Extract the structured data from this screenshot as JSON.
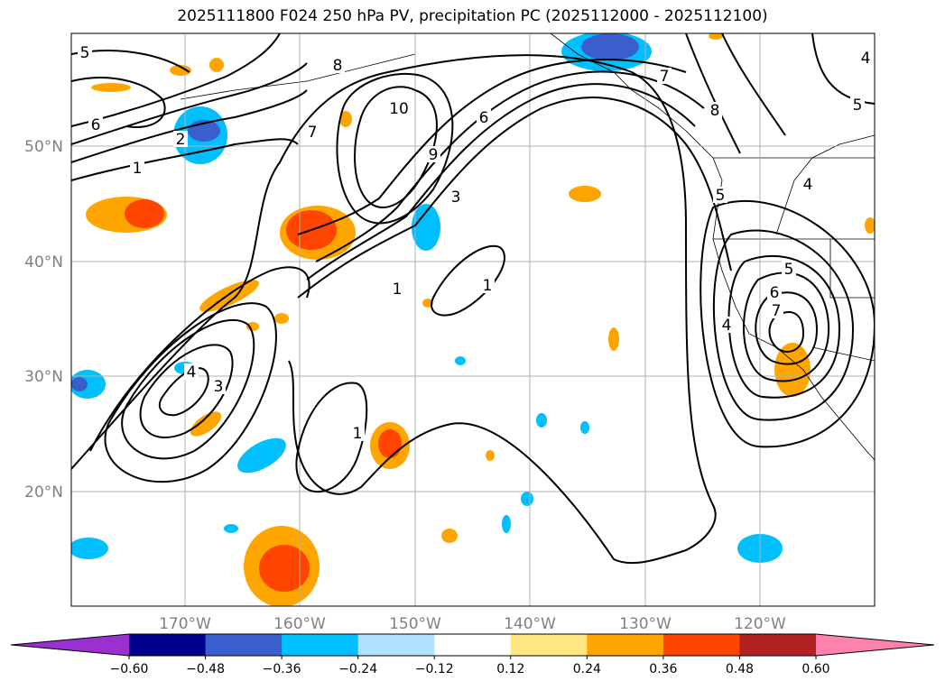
{
  "title": "2025111800 F024 250 hPa PV, precipitation PC (2025112000 - 2025112100)",
  "lat_labels": [
    "50°N",
    "40°N",
    "30°N",
    "20°N"
  ],
  "lon_labels": [
    "170°W",
    "160°W",
    "150°W",
    "140°W",
    "130°W",
    "120°W"
  ],
  "colorbar": {
    "ticks": [
      "−0.60",
      "−0.48",
      "−0.36",
      "−0.24",
      "−0.12",
      "0.12",
      "0.24",
      "0.36",
      "0.48",
      "0.60"
    ],
    "colors": [
      "#9b30d0",
      "#00008b",
      "#3a5fcd",
      "#00bfff",
      "#b0e2ff",
      "#ffffff",
      "#ffe680",
      "#ffa500",
      "#ff4500",
      "#b22222",
      "#ff82ab"
    ]
  },
  "contour_labels": [
    "5",
    "6",
    "1",
    "2",
    "7",
    "8",
    "10",
    "9",
    "6",
    "3",
    "7",
    "8",
    "5",
    "4",
    "5",
    "4",
    "5",
    "6",
    "7",
    "4",
    "1",
    "1",
    "4",
    "3",
    "1"
  ],
  "chart_data": {
    "type": "map",
    "title": "2025111800 F024 250 hPa PV, precipitation PC (2025112000 - 2025112100)",
    "lat_range": [
      10,
      60
    ],
    "lon_range": [
      -180,
      -110
    ],
    "gridlines": true,
    "contour_field": "250 hPa PV",
    "contour_levels": [
      1,
      2,
      3,
      4,
      5,
      6,
      7,
      8,
      9,
      10
    ],
    "shaded_field": "precipitation PC",
    "shading_levels": [
      -0.6,
      -0.48,
      -0.36,
      -0.24,
      -0.12,
      0.12,
      0.24,
      0.36,
      0.48,
      0.6
    ],
    "colorbar_extend": "both"
  }
}
